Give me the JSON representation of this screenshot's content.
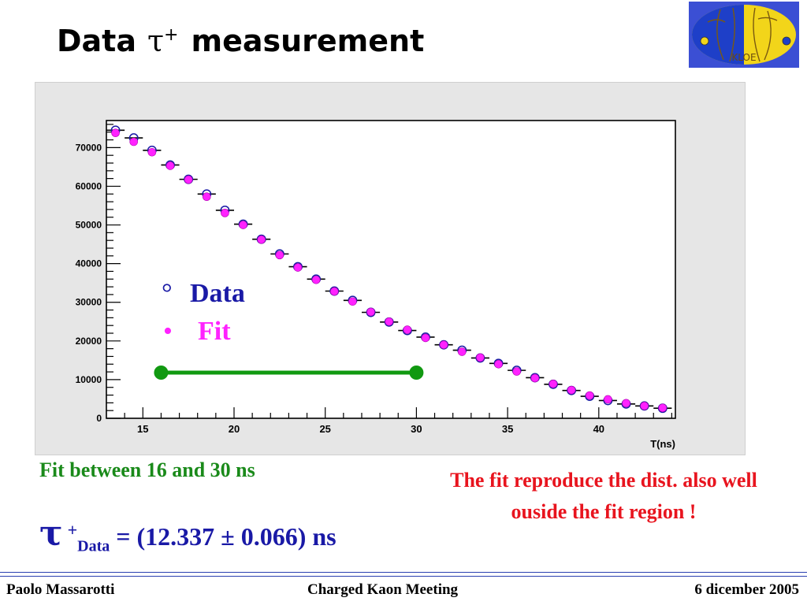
{
  "slide": {
    "title_prefix": "Data",
    "title_symbol": "τ",
    "title_superscript": "+",
    "title_suffix": "measurement"
  },
  "logo": {
    "text": "KLOE"
  },
  "colors": {
    "data": "#1a1aa6",
    "fit": "#ff22ff",
    "fit_range": "#119911",
    "comment": "#e8141e",
    "footer_rule": "#2a3fb0"
  },
  "annotations": {
    "fit_range_note": "Fit between 16 and 30 ns",
    "fit_comment": "The fit reproduce the dist. also well ouside the fit region !",
    "result_symbol": "τ",
    "result_superscript": "+",
    "result_subscript": "Data",
    "result_value": " = (12.337 ± 0.066) ns"
  },
  "footer": {
    "author": "Paolo Massarotti",
    "meeting": "Charged Kaon Meeting",
    "date": "6 dicember 2005"
  },
  "chart_data": {
    "type": "scatter",
    "xlabel": "T(ns)",
    "ylabel": "",
    "xlim": [
      13,
      44.2
    ],
    "ylim": [
      0,
      77000
    ],
    "x_ticks": [
      15,
      20,
      25,
      30,
      35,
      40
    ],
    "y_ticks": [
      0,
      10000,
      20000,
      30000,
      40000,
      50000,
      60000,
      70000
    ],
    "legend": [
      {
        "symbol": "°",
        "label": "Data",
        "color": "#1a1aa6"
      },
      {
        "symbol": "•",
        "label": "Fit",
        "color": "#ff22ff"
      }
    ],
    "legend_position": "center",
    "fit_range": [
      16,
      30
    ],
    "series": [
      {
        "name": "Data",
        "marker": "open-circle",
        "x": [
          13.5,
          14.5,
          15.5,
          16.5,
          17.5,
          18.5,
          19.5,
          20.5,
          21.5,
          22.5,
          23.5,
          24.5,
          25.5,
          26.5,
          27.5,
          28.5,
          29.5,
          30.5,
          31.5,
          32.5,
          33.5,
          34.5,
          35.5,
          36.5,
          37.5,
          38.5,
          39.5,
          40.5,
          41.5,
          42.5,
          43.5
        ],
        "y": [
          74500,
          72500,
          69300,
          65500,
          61800,
          58000,
          53800,
          50200,
          46300,
          42500,
          39200,
          36000,
          32900,
          30500,
          27400,
          24900,
          22700,
          21000,
          19000,
          17600,
          15600,
          14200,
          12400,
          10500,
          8800,
          7200,
          5700,
          4600,
          3700,
          3200,
          2600
        ]
      },
      {
        "name": "Fit",
        "marker": "filled-circle",
        "x": [
          13.5,
          14.5,
          15.5,
          16.5,
          17.5,
          18.5,
          19.5,
          20.5,
          21.5,
          22.5,
          23.5,
          24.5,
          25.5,
          26.5,
          27.5,
          28.5,
          29.5,
          30.5,
          31.5,
          32.5,
          33.5,
          34.5,
          35.5,
          36.5,
          37.5,
          38.5,
          39.5,
          40.5,
          41.5,
          42.5,
          43.5
        ],
        "y": [
          73800,
          71500,
          68800,
          65300,
          61700,
          57300,
          53100,
          50000,
          46200,
          42200,
          39000,
          35800,
          32800,
          30200,
          27500,
          25000,
          22900,
          20800,
          19000,
          17200,
          15700,
          14000,
          12100,
          10400,
          8900,
          7300,
          5900,
          4900,
          3900,
          3200,
          2700
        ]
      }
    ]
  }
}
